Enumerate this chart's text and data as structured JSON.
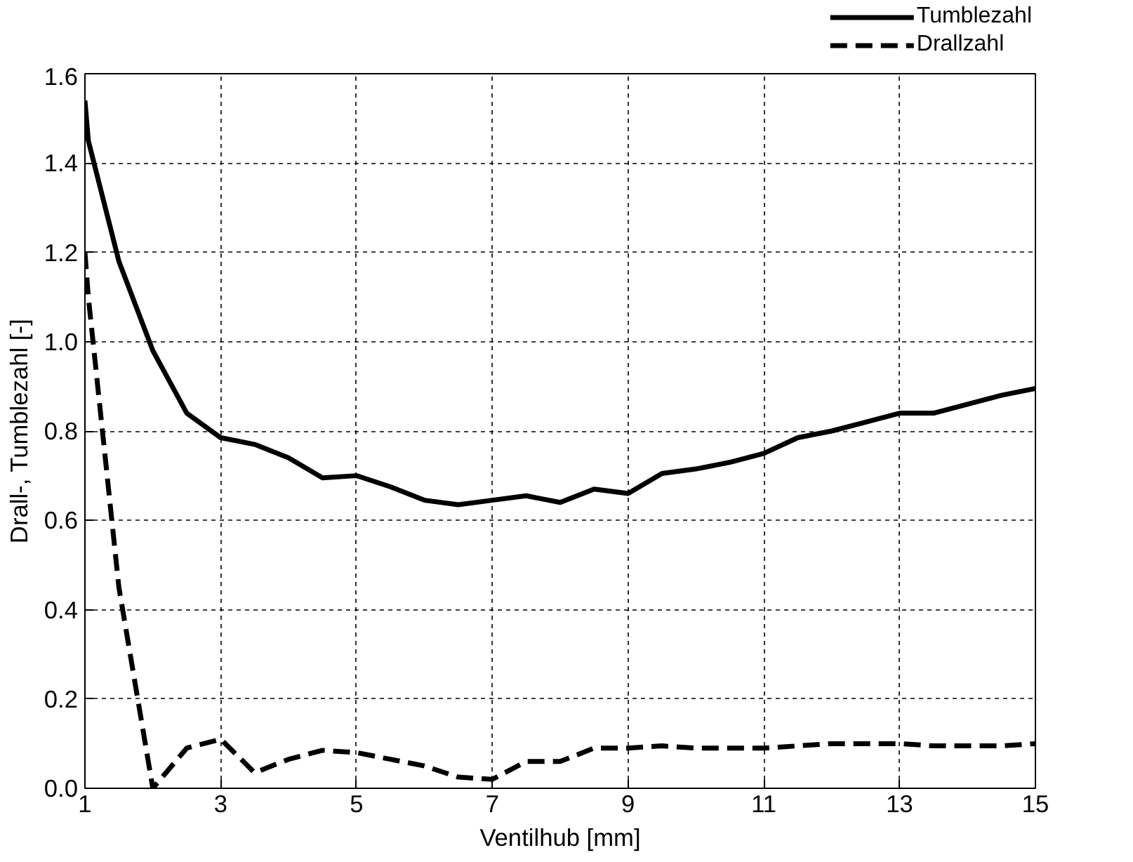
{
  "chart_data": {
    "type": "line",
    "xlabel": "Ventilhub [mm]",
    "ylabel": "Drall-, Tumblezahl [-]",
    "x": [
      1,
      1.05,
      1.5,
      2,
      2.5,
      3,
      3.5,
      4,
      4.5,
      5,
      5.5,
      6,
      6.5,
      7,
      7.5,
      8,
      8.5,
      9,
      9.5,
      10,
      10.5,
      11,
      11.5,
      12,
      12.5,
      13,
      13.5,
      14,
      14.5,
      15
    ],
    "series": [
      {
        "name": "Tumblezahl",
        "color": "#000000",
        "line_style": "solid",
        "values": [
          1.54,
          1.45,
          1.18,
          0.98,
          0.84,
          0.785,
          0.77,
          0.74,
          0.695,
          0.7,
          0.675,
          0.645,
          0.635,
          0.645,
          0.655,
          0.64,
          0.67,
          0.66,
          0.705,
          0.715,
          0.73,
          0.75,
          0.785,
          0.8,
          0.82,
          0.84,
          0.84,
          0.86,
          0.88,
          0.895
        ]
      },
      {
        "name": "Drallzahl",
        "color": "#000000",
        "line_style": "dashed",
        "values": [
          1.2,
          1.1,
          0.45,
          0.0,
          0.09,
          0.11,
          0.035,
          0.065,
          0.085,
          0.08,
          0.065,
          0.05,
          0.025,
          0.02,
          0.06,
          0.06,
          0.09,
          0.09,
          0.095,
          0.09,
          0.09,
          0.09,
          0.095,
          0.1,
          0.1,
          0.1,
          0.095,
          0.095,
          0.095,
          0.1
        ]
      }
    ],
    "xlim": [
      1,
      15
    ],
    "xticks": [
      1,
      3,
      5,
      7,
      9,
      11,
      13,
      15
    ],
    "ylim": [
      0,
      1.6
    ],
    "yticks": [
      {
        "value": 0,
        "label": "0.0"
      },
      {
        "value": 0.2,
        "label": "0.2"
      },
      {
        "value": 0.4,
        "label": "0.4"
      },
      {
        "value": 0.6,
        "label": "0.6"
      },
      {
        "value": 0.8,
        "label": "0.8"
      },
      {
        "value": 1.0,
        "label": "1.0"
      },
      {
        "value": 1.2,
        "label": "1.2"
      },
      {
        "value": 1.4,
        "label": "1.4"
      },
      {
        "value": 1.6,
        "label": "1.6"
      }
    ],
    "grid": true,
    "legend": "top right",
    "marker": "none"
  }
}
